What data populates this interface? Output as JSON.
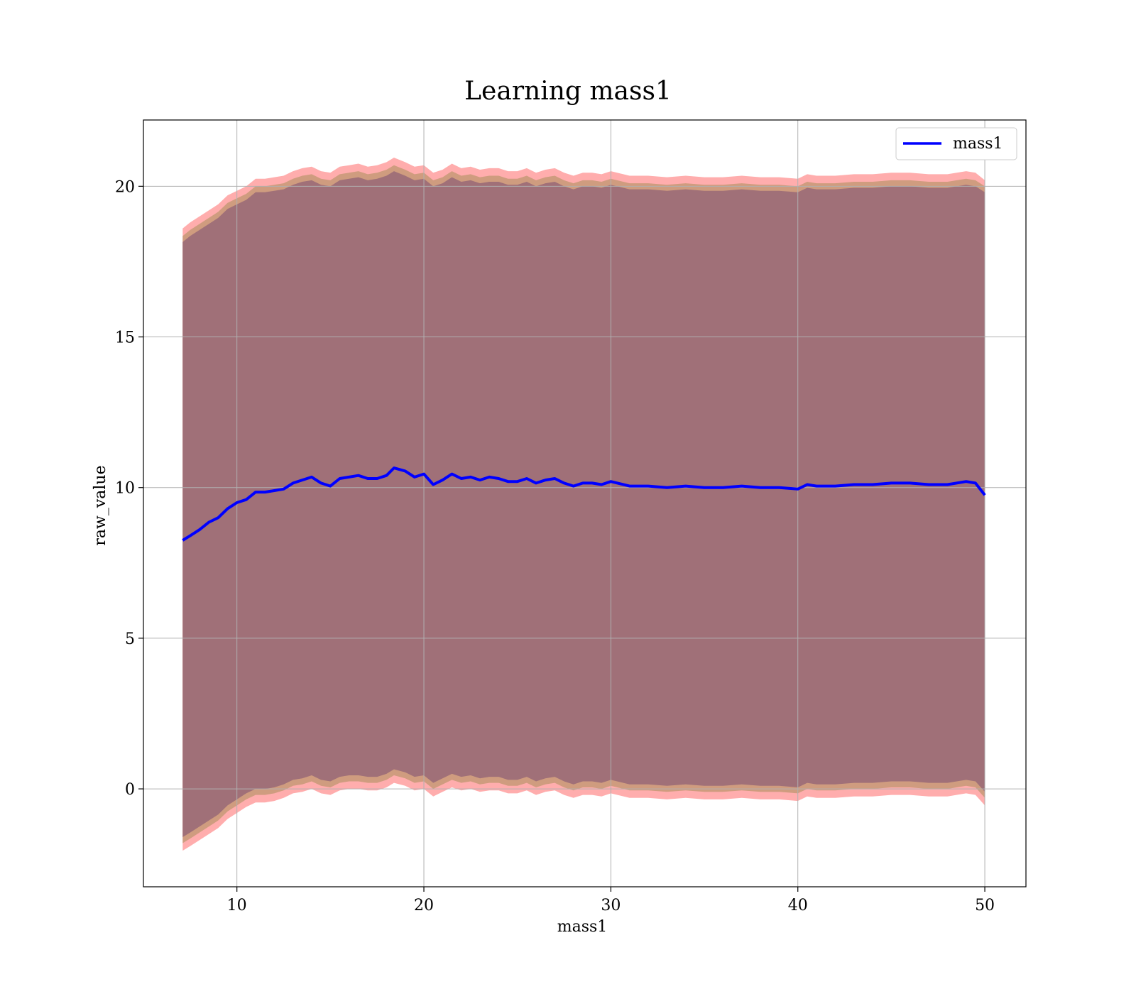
{
  "chart_data": {
    "type": "line",
    "title": "Learning mass1",
    "xlabel": "mass1",
    "ylabel": "raw_value",
    "xlim": [
      5,
      52.2
    ],
    "ylim": [
      -3.25,
      22.2
    ],
    "xticks": [
      10,
      20,
      30,
      40,
      50
    ],
    "yticks": [
      0,
      5,
      10,
      15,
      20
    ],
    "grid": true,
    "legend": {
      "location": "top-right",
      "entries": [
        "mass1"
      ]
    },
    "colors": {
      "line": "#0000ff",
      "band_outer": "#ffadad",
      "band_mid": "#cf9c7f",
      "band_inner": "#a07078",
      "grid": "#b0b0b0"
    },
    "series": [
      {
        "name": "mass1",
        "x": [
          7.1,
          7.5,
          8.0,
          8.5,
          9.0,
          9.5,
          10.0,
          10.5,
          11.0,
          11.5,
          12.0,
          12.5,
          13.0,
          13.5,
          14.0,
          14.5,
          15.0,
          15.5,
          16.0,
          16.5,
          17.0,
          17.5,
          18.0,
          18.4,
          19.0,
          19.5,
          20.0,
          20.5,
          21.0,
          21.5,
          22.0,
          22.5,
          23.0,
          23.5,
          24.0,
          24.5,
          25.0,
          25.5,
          26.0,
          26.5,
          27.0,
          27.5,
          28.0,
          28.5,
          29.0,
          29.5,
          30.0,
          31.0,
          32.0,
          33.0,
          34.0,
          35.0,
          36.0,
          37.0,
          38.0,
          39.0,
          40.0,
          40.5,
          41.0,
          42.0,
          43.0,
          44.0,
          45.0,
          46.0,
          47.0,
          48.0,
          49.0,
          49.5,
          50.0
        ],
        "values": [
          8.25,
          8.4,
          8.6,
          8.85,
          9.0,
          9.3,
          9.5,
          9.6,
          9.85,
          9.85,
          9.9,
          9.95,
          10.15,
          10.25,
          10.35,
          10.15,
          10.05,
          10.3,
          10.35,
          10.4,
          10.3,
          10.3,
          10.4,
          10.65,
          10.55,
          10.35,
          10.45,
          10.1,
          10.25,
          10.45,
          10.3,
          10.35,
          10.25,
          10.35,
          10.3,
          10.2,
          10.2,
          10.3,
          10.15,
          10.25,
          10.3,
          10.15,
          10.05,
          10.15,
          10.15,
          10.1,
          10.2,
          10.05,
          10.05,
          10.0,
          10.05,
          10.0,
          10.0,
          10.05,
          10.0,
          10.0,
          9.95,
          10.1,
          10.05,
          10.05,
          10.1,
          10.1,
          10.15,
          10.15,
          10.1,
          10.1,
          10.2,
          10.15,
          9.75
        ]
      }
    ],
    "bands": [
      {
        "x": [
          7.1,
          7.5,
          8.0,
          8.5,
          9.0,
          9.5,
          10.0,
          10.5,
          11.0,
          11.5,
          12.0,
          12.5,
          13.0,
          13.5,
          14.0,
          14.5,
          15.0,
          15.5,
          16.0,
          16.5,
          17.0,
          17.5,
          18.0,
          18.4,
          19.0,
          19.5,
          20.0,
          20.5,
          21.0,
          21.5,
          22.0,
          22.5,
          23.0,
          23.5,
          24.0,
          24.5,
          25.0,
          25.5,
          26.0,
          26.5,
          27.0,
          27.5,
          28.0,
          28.5,
          29.0,
          29.5,
          30.0,
          31.0,
          32.0,
          33.0,
          34.0,
          35.0,
          36.0,
          37.0,
          38.0,
          39.0,
          40.0,
          40.5,
          41.0,
          42.0,
          43.0,
          44.0,
          45.0,
          46.0,
          47.0,
          48.0,
          49.0,
          49.5,
          50.0
        ],
        "outer_upper": [
          18.6,
          18.8,
          19.0,
          19.2,
          19.4,
          19.7,
          19.85,
          20.0,
          20.25,
          20.25,
          20.3,
          20.35,
          20.5,
          20.6,
          20.65,
          20.5,
          20.45,
          20.65,
          20.7,
          20.75,
          20.65,
          20.7,
          20.8,
          20.95,
          20.8,
          20.65,
          20.7,
          20.45,
          20.55,
          20.75,
          20.6,
          20.65,
          20.55,
          20.6,
          20.6,
          20.5,
          20.5,
          20.6,
          20.45,
          20.55,
          20.6,
          20.45,
          20.35,
          20.45,
          20.45,
          20.4,
          20.5,
          20.35,
          20.35,
          20.3,
          20.35,
          20.3,
          20.3,
          20.35,
          20.3,
          20.3,
          20.25,
          20.4,
          20.35,
          20.35,
          20.4,
          20.4,
          20.45,
          20.45,
          20.4,
          20.4,
          20.5,
          20.45,
          20.2
        ],
        "outer_lower": [
          -2.05,
          -1.9,
          -1.7,
          -1.5,
          -1.3,
          -1.0,
          -0.8,
          -0.6,
          -0.45,
          -0.45,
          -0.4,
          -0.3,
          -0.15,
          -0.1,
          0.0,
          -0.15,
          -0.2,
          -0.05,
          0.0,
          0.0,
          -0.05,
          -0.05,
          0.05,
          0.2,
          0.1,
          -0.05,
          0.0,
          -0.25,
          -0.1,
          0.05,
          -0.05,
          0.0,
          -0.1,
          -0.05,
          -0.05,
          -0.15,
          -0.15,
          -0.05,
          -0.2,
          -0.1,
          -0.05,
          -0.2,
          -0.3,
          -0.2,
          -0.2,
          -0.25,
          -0.15,
          -0.3,
          -0.3,
          -0.35,
          -0.3,
          -0.35,
          -0.35,
          -0.3,
          -0.35,
          -0.35,
          -0.4,
          -0.25,
          -0.3,
          -0.3,
          -0.25,
          -0.25,
          -0.2,
          -0.2,
          -0.25,
          -0.25,
          -0.15,
          -0.2,
          -0.55
        ],
        "mid_upper": [
          18.35,
          18.55,
          18.75,
          18.95,
          19.15,
          19.45,
          19.6,
          19.75,
          20.0,
          20.0,
          20.05,
          20.1,
          20.25,
          20.35,
          20.4,
          20.25,
          20.2,
          20.4,
          20.45,
          20.5,
          20.4,
          20.45,
          20.55,
          20.7,
          20.55,
          20.4,
          20.45,
          20.2,
          20.3,
          20.5,
          20.35,
          20.4,
          20.3,
          20.35,
          20.35,
          20.25,
          20.25,
          20.35,
          20.2,
          20.3,
          20.35,
          20.2,
          20.1,
          20.2,
          20.2,
          20.15,
          20.25,
          20.1,
          20.1,
          20.05,
          20.1,
          20.05,
          20.05,
          20.1,
          20.05,
          20.05,
          20.0,
          20.15,
          20.1,
          20.1,
          20.15,
          20.15,
          20.2,
          20.2,
          20.15,
          20.15,
          20.25,
          20.2,
          20.0
        ],
        "mid_lower": [
          -1.8,
          -1.65,
          -1.45,
          -1.25,
          -1.05,
          -0.75,
          -0.55,
          -0.35,
          -0.2,
          -0.2,
          -0.15,
          -0.05,
          0.1,
          0.15,
          0.25,
          0.1,
          0.05,
          0.2,
          0.25,
          0.25,
          0.2,
          0.2,
          0.3,
          0.45,
          0.35,
          0.2,
          0.25,
          0.0,
          0.15,
          0.3,
          0.2,
          0.25,
          0.15,
          0.2,
          0.2,
          0.1,
          0.1,
          0.2,
          0.05,
          0.15,
          0.2,
          0.05,
          -0.05,
          0.05,
          0.05,
          0.0,
          0.1,
          -0.05,
          -0.05,
          -0.1,
          -0.05,
          -0.1,
          -0.1,
          -0.05,
          -0.1,
          -0.1,
          -0.15,
          0.0,
          -0.05,
          -0.05,
          0.0,
          0.0,
          0.05,
          0.05,
          0.0,
          0.0,
          0.1,
          0.05,
          -0.3
        ],
        "inner_upper": [
          18.15,
          18.35,
          18.55,
          18.75,
          18.95,
          19.25,
          19.4,
          19.55,
          19.8,
          19.8,
          19.85,
          19.9,
          20.05,
          20.15,
          20.2,
          20.05,
          20.0,
          20.2,
          20.25,
          20.3,
          20.2,
          20.25,
          20.35,
          20.5,
          20.35,
          20.2,
          20.25,
          20.0,
          20.1,
          20.3,
          20.15,
          20.2,
          20.1,
          20.15,
          20.15,
          20.05,
          20.05,
          20.15,
          20.0,
          20.1,
          20.15,
          20.0,
          19.9,
          20.0,
          20.0,
          19.95,
          20.05,
          19.9,
          19.9,
          19.85,
          19.9,
          19.85,
          19.85,
          19.9,
          19.85,
          19.85,
          19.8,
          19.95,
          19.9,
          19.9,
          19.95,
          19.95,
          20.0,
          20.0,
          19.95,
          19.95,
          20.05,
          20.0,
          19.8
        ],
        "inner_lower": [
          -1.6,
          -1.45,
          -1.25,
          -1.05,
          -0.85,
          -0.55,
          -0.35,
          -0.15,
          0.0,
          0.0,
          0.05,
          0.15,
          0.3,
          0.35,
          0.45,
          0.3,
          0.25,
          0.4,
          0.45,
          0.45,
          0.4,
          0.4,
          0.5,
          0.65,
          0.55,
          0.4,
          0.45,
          0.2,
          0.35,
          0.5,
          0.4,
          0.45,
          0.35,
          0.4,
          0.4,
          0.3,
          0.3,
          0.4,
          0.25,
          0.35,
          0.4,
          0.25,
          0.15,
          0.25,
          0.25,
          0.2,
          0.3,
          0.15,
          0.15,
          0.1,
          0.15,
          0.1,
          0.1,
          0.15,
          0.1,
          0.1,
          0.05,
          0.2,
          0.15,
          0.15,
          0.2,
          0.2,
          0.25,
          0.25,
          0.2,
          0.2,
          0.3,
          0.25,
          -0.1
        ]
      }
    ]
  }
}
